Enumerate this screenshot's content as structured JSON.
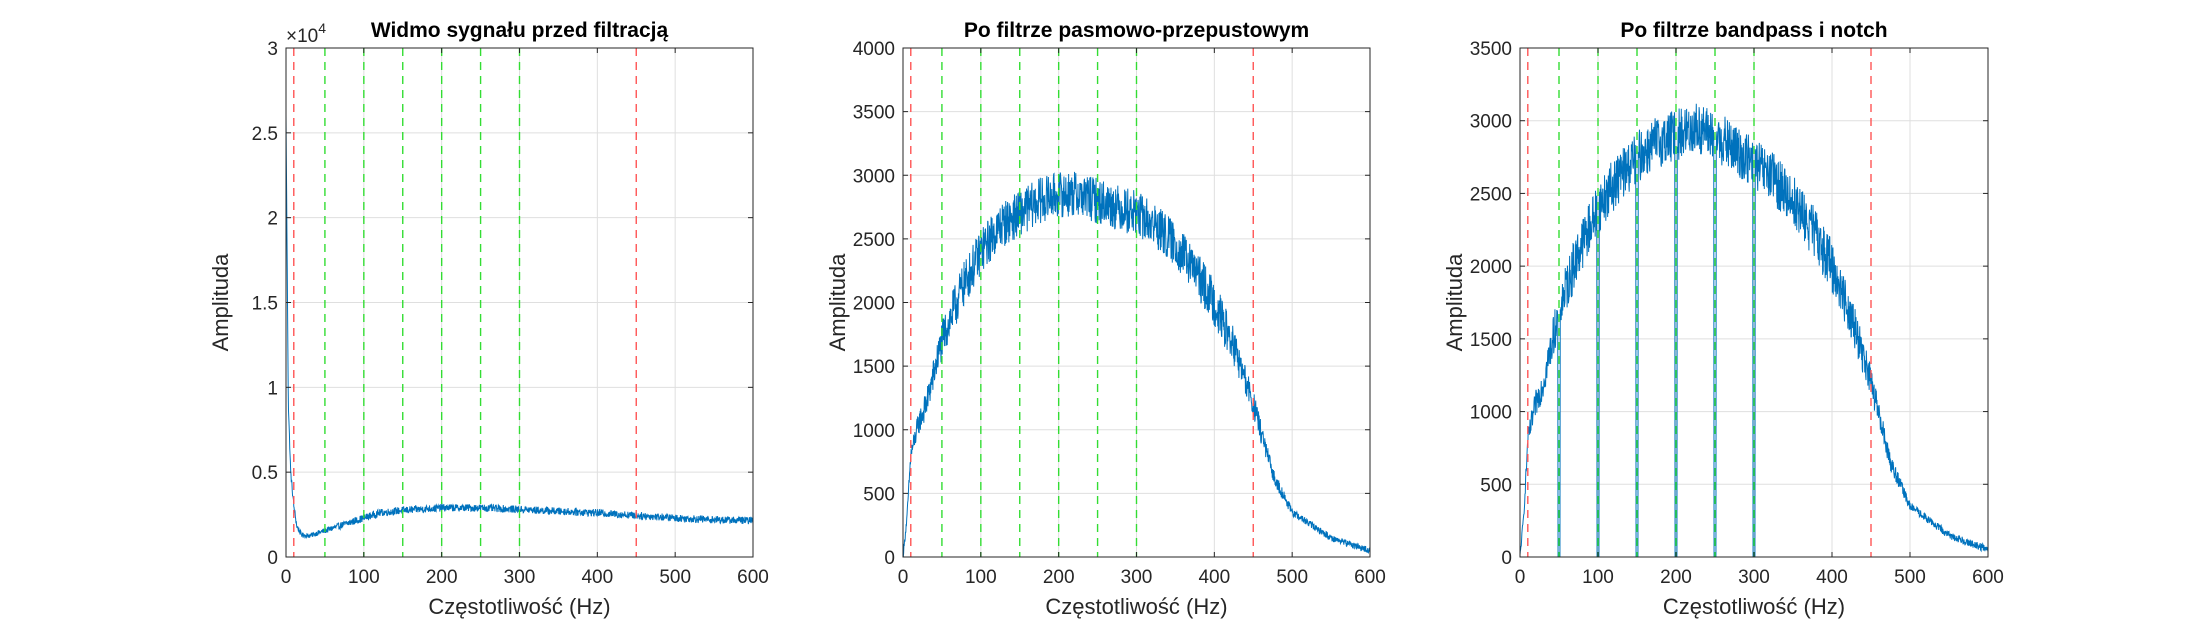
{
  "chart_data": [
    {
      "type": "line",
      "title": "Widmo sygnału przed filtracją",
      "xlabel": "Częstotliwość (Hz)",
      "ylabel": "Amplituda",
      "xlim": [
        0,
        600
      ],
      "ylim": [
        0,
        30000
      ],
      "x_ticks": [
        "0",
        "100",
        "200",
        "300",
        "400",
        "500",
        "600"
      ],
      "y_ticks": [
        "0",
        "0.5",
        "1",
        "1.5",
        "2",
        "2.5",
        "3"
      ],
      "y_exponent_label": "×10",
      "y_exponent_power": "4",
      "grid": true,
      "cutoff_lines_hz": [
        10,
        450
      ],
      "harmonic_lines_hz": [
        50,
        100,
        150,
        200,
        250,
        300
      ],
      "series": [
        {
          "x": [
            0,
            3,
            6,
            10,
            14,
            20,
            30,
            40,
            50,
            60,
            80,
            100,
            120,
            150,
            200,
            250,
            300,
            350,
            400,
            450,
            500,
            550,
            600
          ],
          "values": [
            26000,
            9000,
            5000,
            3000,
            1800,
            1300,
            1250,
            1400,
            1550,
            1700,
            2000,
            2300,
            2600,
            2750,
            2900,
            2900,
            2800,
            2700,
            2600,
            2450,
            2300,
            2200,
            2150
          ],
          "noise": 220
        }
      ]
    },
    {
      "type": "line",
      "title": "Po filtrze pasmowo-przepustowym",
      "xlabel": "Częstotliwość (Hz)",
      "ylabel": "Amplituda",
      "xlim": [
        0,
        600
      ],
      "ylim": [
        0,
        4000
      ],
      "x_ticks": [
        "0",
        "100",
        "200",
        "300",
        "400",
        "500",
        "600"
      ],
      "y_ticks": [
        "0",
        "500",
        "1000",
        "1500",
        "2000",
        "2500",
        "3000",
        "3500",
        "4000"
      ],
      "grid": true,
      "cutoff_lines_hz": [
        10,
        450
      ],
      "harmonic_lines_hz": [
        50,
        100,
        150,
        200,
        250,
        300
      ],
      "series": [
        {
          "x": [
            0,
            5,
            10,
            20,
            30,
            50,
            75,
            100,
            125,
            150,
            175,
            200,
            225,
            250,
            275,
            300,
            325,
            350,
            375,
            400,
            425,
            450,
            475,
            500,
            550,
            600
          ],
          "values": [
            0,
            300,
            800,
            1050,
            1200,
            1700,
            2100,
            2400,
            2600,
            2700,
            2800,
            2850,
            2850,
            2800,
            2750,
            2700,
            2600,
            2450,
            2250,
            2000,
            1650,
            1200,
            650,
            350,
            150,
            50
          ],
          "noise": 180
        }
      ]
    },
    {
      "type": "line",
      "title": "Po filtrze bandpass i notch",
      "xlabel": "Częstotliwość (Hz)",
      "ylabel": "Amplituda",
      "xlim": [
        0,
        600
      ],
      "ylim": [
        0,
        3500
      ],
      "x_ticks": [
        "0",
        "100",
        "200",
        "300",
        "400",
        "500",
        "600"
      ],
      "y_ticks": [
        "0",
        "500",
        "1000",
        "1500",
        "2000",
        "2500",
        "3000",
        "3500"
      ],
      "grid": true,
      "cutoff_lines_hz": [
        10,
        450
      ],
      "harmonic_lines_hz": [
        50,
        100,
        150,
        200,
        250,
        300
      ],
      "notch_hz": [
        50,
        100,
        150,
        200,
        250,
        300
      ],
      "series": [
        {
          "x": [
            0,
            5,
            10,
            20,
            30,
            50,
            75,
            100,
            125,
            150,
            175,
            200,
            225,
            250,
            275,
            300,
            325,
            350,
            375,
            400,
            425,
            450,
            475,
            500,
            550,
            600
          ],
          "values": [
            0,
            300,
            800,
            1050,
            1200,
            1700,
            2100,
            2400,
            2600,
            2750,
            2850,
            2900,
            2950,
            2900,
            2800,
            2700,
            2600,
            2450,
            2250,
            2000,
            1650,
            1200,
            650,
            350,
            150,
            50
          ],
          "noise": 180
        }
      ]
    }
  ],
  "colors": {
    "series": "#0072BD",
    "cutoff": "#ff5555",
    "harmonic": "#33dd33",
    "grid": "#dfdfdf",
    "axis": "#262626"
  }
}
